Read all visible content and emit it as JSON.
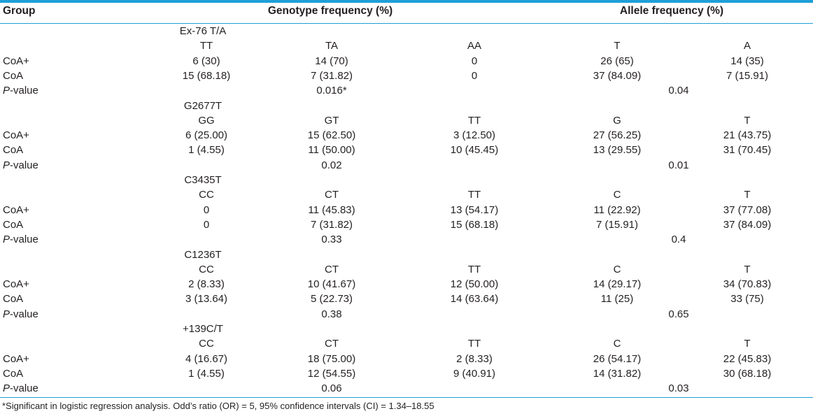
{
  "header": {
    "group": "Group",
    "genotype": "Genotype frequency (%)",
    "allele": "Allele frequency (%)"
  },
  "p_label_prefix": "P",
  "p_label_suffix": "-value",
  "blocks": [
    {
      "marker": "Ex-76 T/A",
      "genotypes": [
        "TT",
        "TA",
        "AA"
      ],
      "alleles": [
        "T",
        "A"
      ],
      "rows": [
        {
          "group": "CoA+",
          "values": [
            "6 (30)",
            "14 (70)",
            "0",
            "26 (65)",
            "14 (35)"
          ]
        },
        {
          "group": "CoA",
          "values": [
            "15 (68.18)",
            "7 (31.82)",
            "0",
            "37 (84.09)",
            "7 (15.91)"
          ]
        }
      ],
      "p_genotype": "0.016*",
      "p_allele": "0.04"
    },
    {
      "marker": "G2677T",
      "genotypes": [
        "GG",
        "GT",
        "TT"
      ],
      "alleles": [
        "G",
        "T"
      ],
      "rows": [
        {
          "group": "CoA+",
          "values": [
            "6 (25.00)",
            "15 (62.50)",
            "3 (12.50)",
            "27 (56.25)",
            "21 (43.75)"
          ]
        },
        {
          "group": "CoA",
          "values": [
            "1 (4.55)",
            "11 (50.00)",
            "10 (45.45)",
            "13 (29.55)",
            "31 (70.45)"
          ]
        }
      ],
      "p_genotype": "0.02",
      "p_allele": "0.01"
    },
    {
      "marker": "C3435T",
      "genotypes": [
        "CC",
        "CT",
        "TT"
      ],
      "alleles": [
        "C",
        "T"
      ],
      "rows": [
        {
          "group": "CoA+",
          "values": [
            "0",
            "11 (45.83)",
            "13 (54.17)",
            "11 (22.92)",
            "37 (77.08)"
          ]
        },
        {
          "group": "CoA",
          "values": [
            "0",
            "7 (31.82)",
            "15 (68.18)",
            "7 (15.91)",
            "37 (84.09)"
          ]
        }
      ],
      "p_genotype": "0.33",
      "p_allele": "0.4"
    },
    {
      "marker": "C1236T",
      "genotypes": [
        "CC",
        "CT",
        "TT"
      ],
      "alleles": [
        "C",
        "T"
      ],
      "rows": [
        {
          "group": "CoA+",
          "values": [
            "2 (8.33)",
            "10 (41.67)",
            "12 (50.00)",
            "14 (29.17)",
            "34 (70.83)"
          ]
        },
        {
          "group": "CoA",
          "values": [
            "3 (13.64)",
            "5 (22.73)",
            "14 (63.64)",
            "11 (25)",
            "33 (75)"
          ]
        }
      ],
      "p_genotype": "0.38",
      "p_allele": "0.65"
    },
    {
      "marker": "+139C/T",
      "genotypes": [
        "CC",
        "CT",
        "TT"
      ],
      "alleles": [
        "C",
        "T"
      ],
      "rows": [
        {
          "group": "CoA+",
          "values": [
            "4 (16.67)",
            "18 (75.00)",
            "2 (8.33)",
            "26 (54.17)",
            "22 (45.83)"
          ]
        },
        {
          "group": "CoA",
          "values": [
            "1 (4.55)",
            "12 (54.55)",
            "9 (40.91)",
            "14 (31.82)",
            "30 (68.18)"
          ]
        }
      ],
      "p_genotype": "0.06",
      "p_allele": "0.03"
    }
  ],
  "footnote": "*Significant in logistic regression analysis. Odd’s ratio (OR) = 5, 95% confidence intervals (CI) = 1.34–18.55"
}
